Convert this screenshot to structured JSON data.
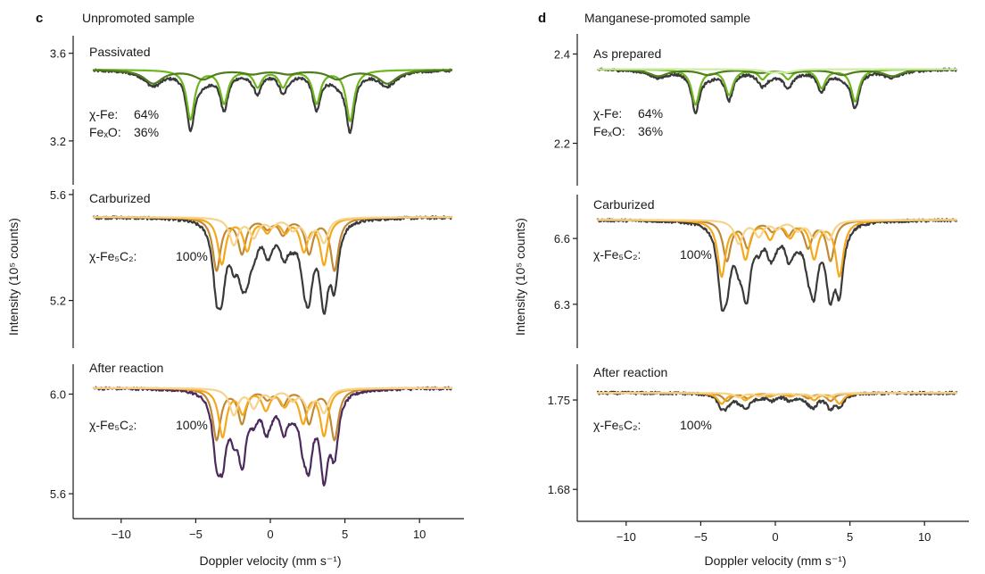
{
  "chart_data": [
    {
      "type": "line",
      "panel_letter": "c",
      "title": "Unpromoted sample",
      "xlabel": "Doppler velocity (mm s⁻¹)",
      "ylabel": "Intensity (10⁵ counts)",
      "xlim": [
        -12.8,
        13
      ],
      "xticks": [
        -10,
        -5,
        0,
        5,
        10
      ],
      "xtick_labels": [
        "−10",
        "−5",
        "0",
        "5",
        "10"
      ],
      "subplots": [
        {
          "label": "Passivated",
          "ylim": [
            3.0,
            3.68
          ],
          "yticks": [
            3.6,
            3.2
          ],
          "ytick_labels": [
            "3.6",
            "3.2"
          ],
          "baseline": 3.525,
          "composition": [
            {
              "phase": "χ-Fe",
              "percent": "64%"
            },
            {
              "phase": "FeₓO",
              "percent": "36%"
            }
          ],
          "data_color": "#3a3a3a",
          "components": [
            {
              "name": "sextet-main",
              "color": "#6fb51f",
              "width": 0.32,
              "peaks": [
                [
                  -5.35,
                  0.33
                ],
                [
                  -3.1,
                  0.22
                ],
                [
                  -0.85,
                  0.11
                ],
                [
                  0.85,
                  0.11
                ],
                [
                  3.1,
                  0.22
                ],
                [
                  5.35,
                  0.34
                ]
              ]
            },
            {
              "name": "sextet-broad",
              "color": "#4e7d1c",
              "width": 0.75,
              "peaks": [
                [
                  -7.85,
                  0.09
                ],
                [
                  -4.5,
                  0.06
                ],
                [
                  -1.2,
                  0.025
                ],
                [
                  1.2,
                  0.025
                ],
                [
                  4.5,
                  0.06
                ],
                [
                  7.85,
                  0.09
                ]
              ]
            }
          ]
        },
        {
          "label": "Carburized",
          "ylim": [
            5.02,
            5.62
          ],
          "yticks": [
            5.6,
            5.2
          ],
          "ytick_labels": [
            "5.6",
            "5.2"
          ],
          "baseline": 5.515,
          "composition": [
            {
              "phase": "χ-Fe₅C₂",
              "percent": "100%"
            }
          ],
          "data_color": "#3a3a3a",
          "components": [
            {
              "name": "site-1",
              "color": "#c08a35",
              "width": 0.32,
              "peaks": [
                [
                  -3.6,
                  0.33
                ],
                [
                  -1.9,
                  0.22
                ],
                [
                  -0.2,
                  0.06
                ],
                [
                  0.85,
                  0.1
                ],
                [
                  2.6,
                  0.22
                ],
                [
                  4.3,
                  0.33
                ]
              ]
            },
            {
              "name": "site-2",
              "color": "#f5a81c",
              "width": 0.32,
              "peaks": [
                [
                  -3.25,
                  0.29
                ],
                [
                  -1.55,
                  0.2
                ],
                [
                  -0.2,
                  0.08
                ],
                [
                  1.0,
                  0.08
                ],
                [
                  2.25,
                  0.2
                ],
                [
                  3.6,
                  0.29
                ]
              ]
            },
            {
              "name": "site-3",
              "color": "#f7d38c",
              "width": 0.34,
              "peaks": [
                [
                  -2.45,
                  0.17
                ],
                [
                  -1.1,
                  0.12
                ],
                [
                  0.1,
                  0.05
                ],
                [
                  1.5,
                  0.07
                ],
                [
                  2.55,
                  0.12
                ],
                [
                  3.6,
                  0.15
                ]
              ]
            }
          ]
        },
        {
          "label": "After reaction",
          "ylim": [
            5.5,
            6.12
          ],
          "yticks": [
            6.0,
            5.6
          ],
          "ytick_labels": [
            "6.0",
            "5.6"
          ],
          "baseline": 6.025,
          "composition": [
            {
              "phase": "χ-Fe₅C₂",
              "percent": "100%"
            }
          ],
          "data_color": "#4b2a5c",
          "components": [
            {
              "name": "site-1",
              "color": "#c08a35",
              "width": 0.32,
              "peaks": [
                [
                  -3.6,
                  0.33
                ],
                [
                  -1.9,
                  0.22
                ],
                [
                  -0.2,
                  0.06
                ],
                [
                  0.85,
                  0.1
                ],
                [
                  2.6,
                  0.22
                ],
                [
                  4.3,
                  0.33
                ]
              ]
            },
            {
              "name": "site-2",
              "color": "#f5a81c",
              "width": 0.32,
              "peaks": [
                [
                  -3.2,
                  0.31
                ],
                [
                  -1.85,
                  0.15
                ],
                [
                  -0.3,
                  0.13
                ],
                [
                  0.95,
                  0.1
                ],
                [
                  2.2,
                  0.21
                ],
                [
                  3.6,
                  0.3
                ]
              ]
            },
            {
              "name": "site-3",
              "color": "#f7d38c",
              "width": 0.34,
              "peaks": [
                [
                  -2.45,
                  0.17
                ],
                [
                  -1.1,
                  0.12
                ],
                [
                  0.1,
                  0.05
                ],
                [
                  1.5,
                  0.07
                ],
                [
                  2.55,
                  0.12
                ],
                [
                  3.6,
                  0.15
                ]
              ]
            }
          ]
        }
      ]
    },
    {
      "type": "line",
      "panel_letter": "d",
      "title": "Manganese-promoted sample",
      "xlabel": "Doppler velocity (mm s⁻¹)",
      "ylabel": "Intensity (10⁵ counts)",
      "xlim": [
        -12.8,
        13
      ],
      "xticks": [
        -10,
        -5,
        0,
        5,
        10
      ],
      "xtick_labels": [
        "−10",
        "−5",
        "0",
        "5",
        "10"
      ],
      "subplots": [
        {
          "label": "As prepared",
          "ylim": [
            2.105,
            2.445
          ],
          "yticks": [
            2.4,
            2.2
          ],
          "ytick_labels": [
            "2.4",
            "2.2"
          ],
          "baseline": 2.366,
          "composition": [
            {
              "phase": "χ-Fe",
              "percent": "64%"
            },
            {
              "phase": "FeₓO",
              "percent": "36%"
            }
          ],
          "data_color": "#3a3a3a",
          "components": [
            {
              "name": "sextet-main",
              "color": "#6fb51f",
              "width": 0.32,
              "peaks": [
                [
                  -5.35,
                  0.23
                ],
                [
                  -3.1,
                  0.165
                ],
                [
                  -0.85,
                  0.06
                ],
                [
                  0.85,
                  0.06
                ],
                [
                  3.1,
                  0.12
                ],
                [
                  5.35,
                  0.21
                ]
              ]
            },
            {
              "name": "sextet-broad",
              "color": "#4e7d1c",
              "width": 0.75,
              "peaks": [
                [
                  -7.85,
                  0.044
                ],
                [
                  -4.5,
                  0.035
                ],
                [
                  -1.0,
                  0.02
                ],
                [
                  1.0,
                  0.02
                ],
                [
                  4.5,
                  0.035
                ],
                [
                  7.85,
                  0.044
                ]
              ]
            },
            {
              "name": "doublet",
              "color": "#cdeca0",
              "width": 0.6,
              "peaks": [
                [
                  -0.3,
                  0.018
                ],
                [
                  0.75,
                  0.018
                ]
              ]
            }
          ]
        },
        {
          "label": "Carburized",
          "ylim": [
            6.1,
            6.8
          ],
          "yticks": [
            6.6,
            6.3
          ],
          "ytick_labels": [
            "6.6",
            "6.3"
          ],
          "baseline": 6.685,
          "composition": [
            {
              "phase": "χ-Fe₅C₂",
              "percent": "100%"
            }
          ],
          "data_color": "#3a3a3a",
          "components": [
            {
              "name": "site-1",
              "color": "#c08a35",
              "width": 0.32,
              "peaks": [
                [
                  -3.25,
                  0.26
                ],
                [
                  -1.85,
                  0.17
                ],
                [
                  -0.2,
                  0.06
                ],
                [
                  0.85,
                  0.09
                ],
                [
                  2.2,
                  0.17
                ],
                [
                  3.7,
                  0.26
                ]
              ]
            },
            {
              "name": "site-2",
              "color": "#f5a81c",
              "width": 0.32,
              "peaks": [
                [
                  -3.6,
                  0.36
                ],
                [
                  -2.0,
                  0.24
                ],
                [
                  -0.35,
                  0.11
                ],
                [
                  1.0,
                  0.1
                ],
                [
                  2.6,
                  0.24
                ],
                [
                  4.3,
                  0.36
                ]
              ]
            },
            {
              "name": "site-3",
              "color": "#f7d38c",
              "width": 0.34,
              "peaks": [
                [
                  -2.45,
                  0.15
                ],
                [
                  -1.1,
                  0.1
                ],
                [
                  0.1,
                  0.05
                ],
                [
                  1.5,
                  0.06
                ],
                [
                  2.55,
                  0.1
                ],
                [
                  3.6,
                  0.12
                ]
              ]
            }
          ]
        },
        {
          "label": "After reaction",
          "ylim": [
            1.655,
            1.778
          ],
          "yticks": [
            1.75,
            1.68
          ],
          "ytick_labels": [
            "1.75",
            "1.68"
          ],
          "baseline": 1.7555,
          "composition": [
            {
              "phase": "χ-Fe₅C₂",
              "percent": "100%"
            }
          ],
          "data_color": "#3a3a3a",
          "components": [
            {
              "name": "site-1",
              "color": "#c08a35",
              "width": 0.32,
              "peaks": [
                [
                  -3.25,
                  0.05
                ],
                [
                  -1.85,
                  0.032
                ],
                [
                  -0.2,
                  0.012
                ],
                [
                  0.85,
                  0.014
                ],
                [
                  2.2,
                  0.032
                ],
                [
                  3.7,
                  0.05
                ]
              ]
            },
            {
              "name": "site-2",
              "color": "#f5a81c",
              "width": 0.32,
              "peaks": [
                [
                  -3.6,
                  0.067
                ],
                [
                  -2.0,
                  0.043
                ],
                [
                  -0.35,
                  0.02
                ],
                [
                  1.0,
                  0.019
                ],
                [
                  2.6,
                  0.043
                ],
                [
                  4.3,
                  0.067
                ]
              ]
            },
            {
              "name": "site-3",
              "color": "#f7d38c",
              "width": 0.34,
              "peaks": [
                [
                  -2.45,
                  0.027
                ],
                [
                  -1.1,
                  0.019
                ],
                [
                  0.1,
                  0.009
                ],
                [
                  1.5,
                  0.011
                ],
                [
                  2.55,
                  0.019
                ],
                [
                  3.6,
                  0.023
                ]
              ]
            }
          ]
        }
      ]
    }
  ]
}
